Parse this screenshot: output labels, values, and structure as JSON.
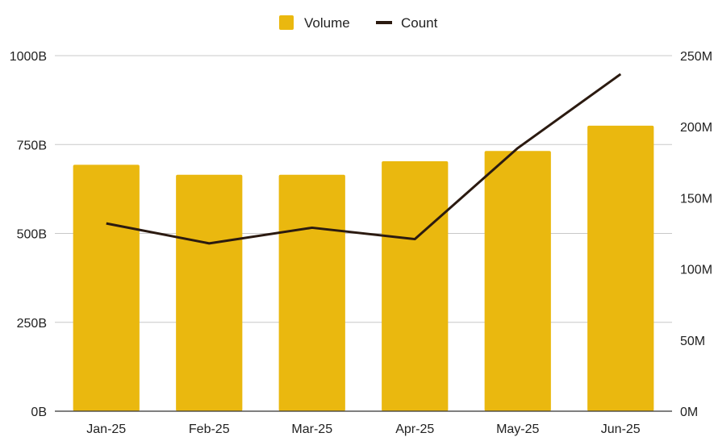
{
  "chart_data": {
    "type": "bar",
    "categories": [
      "Jan-25",
      "Feb-25",
      "Mar-25",
      "Apr-25",
      "May-25",
      "Jun-25"
    ],
    "series": [
      {
        "name": "Volume",
        "type": "bar",
        "axis": "left",
        "color": "#EAB80F",
        "values": [
          693,
          665,
          665,
          703,
          732,
          803
        ]
      },
      {
        "name": "Count",
        "type": "line",
        "axis": "right",
        "color": "#2B1A10",
        "values": [
          132,
          118,
          129,
          121,
          185,
          237
        ]
      }
    ],
    "left_axis": {
      "ylim": [
        0,
        1000
      ],
      "ticks": [
        0,
        250,
        500,
        750,
        1000
      ],
      "tick_labels": [
        "0B",
        "250B",
        "500B",
        "750B",
        "1000B"
      ]
    },
    "right_axis": {
      "ylim": [
        0,
        250
      ],
      "ticks": [
        0,
        50,
        100,
        150,
        200,
        250
      ],
      "tick_labels": [
        "0M",
        "50M",
        "100M",
        "150M",
        "200M",
        "250M"
      ]
    },
    "grid": true,
    "legend_position": "top-center",
    "title": "",
    "xlabel": "",
    "ylabel": ""
  }
}
